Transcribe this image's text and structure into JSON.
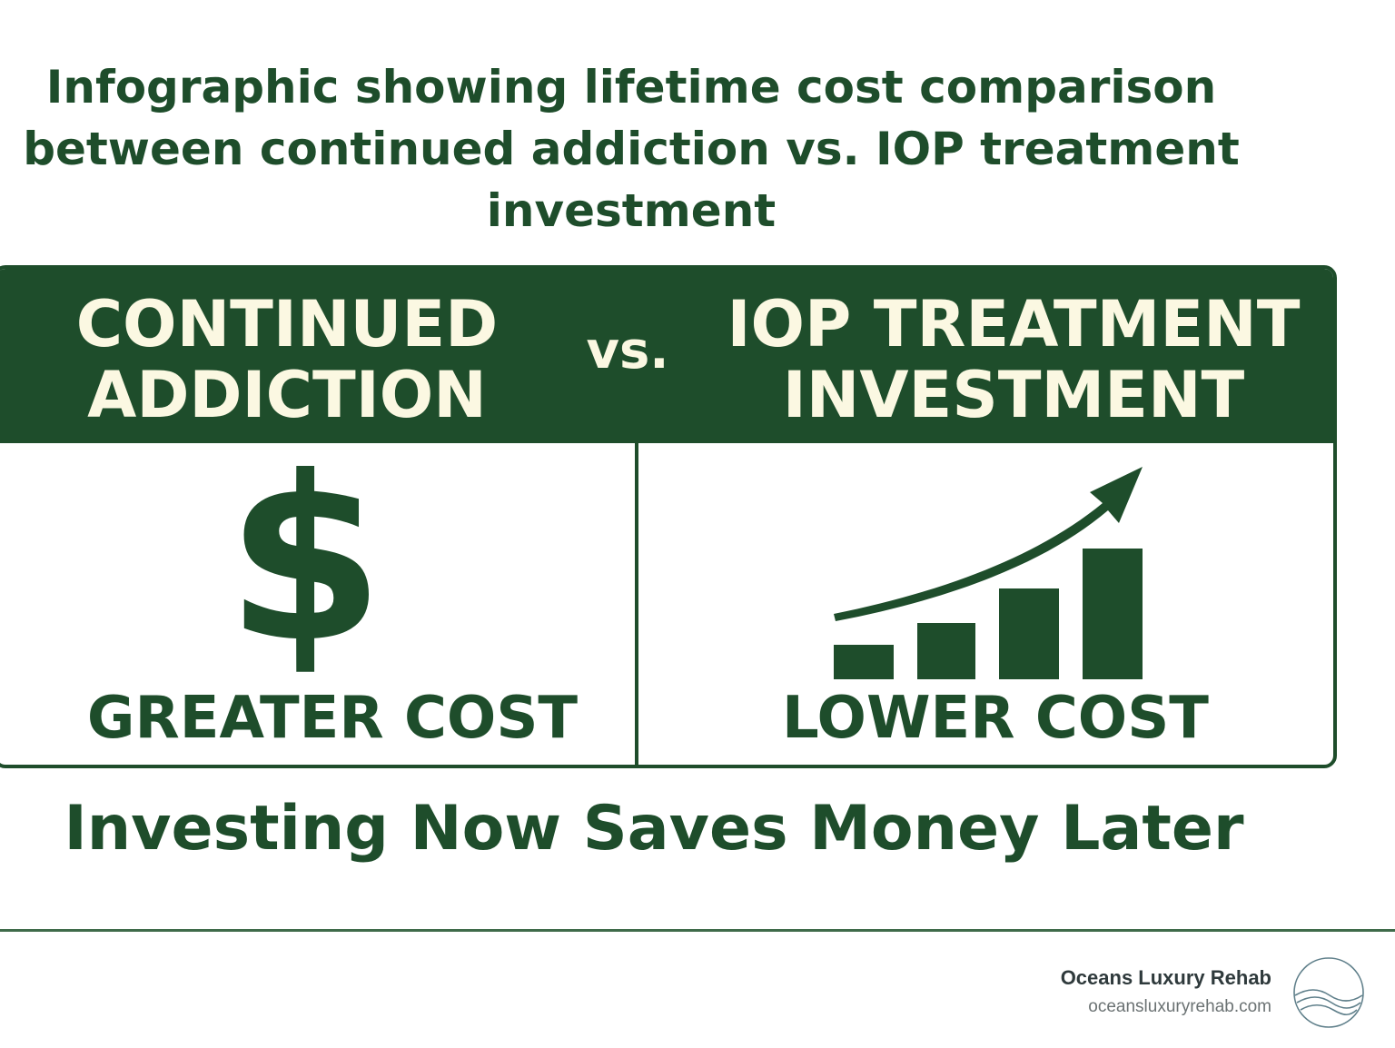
{
  "title": {
    "lines": [
      "Infographic showing lifetime cost comparison",
      "between continued addiction vs. IOP treatment",
      "investment"
    ]
  },
  "comparison": {
    "left_heading": [
      "CONTINUED",
      "ADDICTION"
    ],
    "vs_label": "vs.",
    "right_heading": [
      "IOP TREATMENT",
      "INVESTMENT"
    ],
    "left_icon": "dollar-sign-icon",
    "left_symbol": "$",
    "left_label": "GREATER COST",
    "right_icon": "rising-bar-chart-icon",
    "right_label": "LOWER COST"
  },
  "tagline": "Investing Now Saves Money Later",
  "footer": {
    "brand_name": "Oceans Luxury Rehab",
    "brand_url": "oceansluxuryrehab.com",
    "logo_icon": "ocean-wave-circle-logo"
  },
  "colors": {
    "primary_green": "#1e4d2b",
    "cream": "#fbf8e2",
    "footer_text": "#2f3a3c",
    "footer_url": "#6b7273"
  }
}
